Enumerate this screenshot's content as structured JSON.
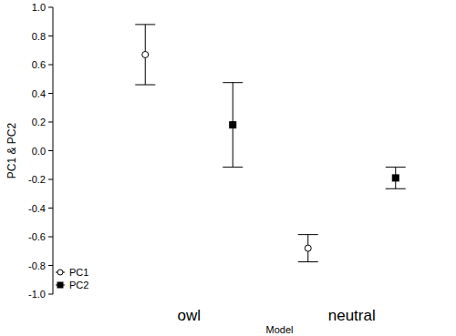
{
  "chart_data": {
    "type": "scatter",
    "x_label": "Model",
    "y_label": "PC1 & PC2",
    "categories": [
      "owl",
      "neutral"
    ],
    "series": [
      {
        "name": "PC1",
        "color": "#000000",
        "marker": "circle",
        "values": [
          0.67,
          -0.68
        ],
        "errors": [
          0.21,
          0.095
        ]
      },
      {
        "name": "PC2",
        "color": "#000000",
        "marker": "square",
        "values": [
          0.18,
          -0.19
        ],
        "errors": [
          0.295,
          0.075
        ]
      }
    ],
    "ylim": [
      -1,
      1
    ],
    "yticks": [
      {
        "value": -1,
        "label": "-1.0"
      },
      -0.8,
      -0.6,
      -0.4,
      -0.2,
      {
        "value": 0,
        "label": "0.0"
      },
      0.2,
      0.4,
      0.6,
      0.8,
      {
        "value": 1,
        "label": "1.0"
      }
    ],
    "grid": false,
    "legend": "lower left"
  }
}
